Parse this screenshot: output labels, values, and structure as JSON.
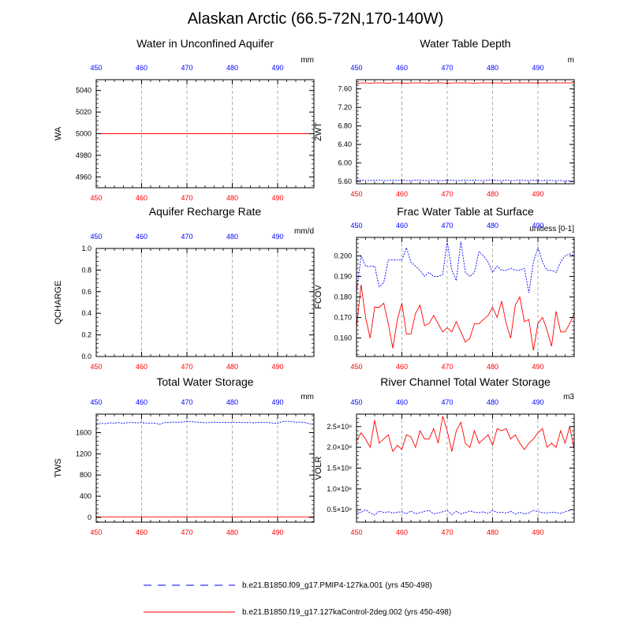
{
  "title": "Alaskan Arctic (66.5-72N,170-140W)",
  "legend": [
    {
      "name": "b.e21.B1850.f09_g17.PMIP4-127ka.001 (yrs 450-498)",
      "color": "#0000ff",
      "dash": "dashed"
    },
    {
      "name": "b.e21.B1850.f19_g17.127kaControl-2deg.002 (yrs 450-498)",
      "color": "#ff0000",
      "dash": "solid"
    }
  ],
  "colors": {
    "series_a": "#0000ff",
    "series_b": "#ff0000",
    "top_ticks": "#0000ff",
    "bottom_ticks": "#ff0000",
    "grid": "#999999"
  },
  "chart_data": [
    {
      "type": "line",
      "title": "Water in Unconfined Aquifer",
      "ylabel": "WA",
      "unit": "mm",
      "xlim": [
        450,
        498
      ],
      "ylim": [
        4950,
        5050
      ],
      "xticks": [
        450,
        460,
        470,
        480,
        490
      ],
      "yticks": [
        4960,
        4980,
        5000,
        5020,
        5040
      ],
      "ytick_labels": [
        "4960",
        "4980",
        "5000",
        "5020",
        "5040"
      ],
      "grid": "vertical dashed",
      "x_start": 450,
      "series": [
        {
          "values": [
            5000,
            5000,
            5000,
            5000,
            5000,
            5000,
            5000,
            5000,
            5000,
            5000,
            5000,
            5000,
            5000,
            5000,
            5000,
            5000,
            5000,
            5000,
            5000,
            5000,
            5000,
            5000,
            5000,
            5000,
            5000,
            5000,
            5000,
            5000,
            5000,
            5000,
            5000,
            5000,
            5000,
            5000,
            5000,
            5000,
            5000,
            5000,
            5000,
            5000,
            5000,
            5000,
            5000,
            5000,
            5000,
            5000,
            5000,
            5000,
            5000
          ],
          "color": "#0000ff",
          "dash": "dashed"
        },
        {
          "values": [
            5000,
            5000,
            5000,
            5000,
            5000,
            5000,
            5000,
            5000,
            5000,
            5000,
            5000,
            5000,
            5000,
            5000,
            5000,
            5000,
            5000,
            5000,
            5000,
            5000,
            5000,
            5000,
            5000,
            5000,
            5000,
            5000,
            5000,
            5000,
            5000,
            5000,
            5000,
            5000,
            5000,
            5000,
            5000,
            5000,
            5000,
            5000,
            5000,
            5000,
            5000,
            5000,
            5000,
            5000,
            5000,
            5000,
            5000,
            5000,
            5000
          ],
          "color": "#ff0000",
          "dash": "solid"
        }
      ]
    },
    {
      "type": "line",
      "title": "Water Table Depth",
      "ylabel": "ZWT",
      "unit": "m",
      "xlim": [
        450,
        498
      ],
      "ylim": [
        5.55,
        7.8
      ],
      "xticks": [
        450,
        460,
        470,
        480,
        490
      ],
      "yticks": [
        5.6,
        6.0,
        6.4,
        6.8,
        7.2,
        7.6
      ],
      "ytick_labels": [
        "5.60",
        "6.00",
        "6.40",
        "6.80",
        "7.20",
        "7.60"
      ],
      "grid": "vertical dashed",
      "x_start": 450,
      "series": [
        {
          "values": [
            5.62,
            5.63,
            5.62,
            5.62,
            5.63,
            5.63,
            5.62,
            5.62,
            5.63,
            5.62,
            5.63,
            5.62,
            5.62,
            5.63,
            5.63,
            5.62,
            5.62,
            5.63,
            5.62,
            5.62,
            5.63,
            5.63,
            5.62,
            5.62,
            5.63,
            5.62,
            5.63,
            5.62,
            5.62,
            5.63,
            5.63,
            5.62,
            5.62,
            5.63,
            5.62,
            5.62,
            5.63,
            5.62,
            5.62,
            5.63,
            5.62,
            5.62,
            5.63,
            5.62,
            5.62,
            5.62,
            5.61,
            5.61,
            5.61
          ],
          "color": "#0000ff",
          "dash": "dashed"
        },
        {
          "values": [
            7.72,
            7.73,
            7.73,
            7.72,
            7.73,
            7.73,
            7.73,
            7.72,
            7.73,
            7.73,
            7.73,
            7.72,
            7.73,
            7.73,
            7.73,
            7.73,
            7.72,
            7.73,
            7.73,
            7.73,
            7.72,
            7.73,
            7.73,
            7.73,
            7.73,
            7.73,
            7.72,
            7.73,
            7.73,
            7.73,
            7.73,
            7.73,
            7.73,
            7.72,
            7.73,
            7.73,
            7.73,
            7.73,
            7.73,
            7.73,
            7.73,
            7.73,
            7.73,
            7.73,
            7.73,
            7.73,
            7.73,
            7.73,
            7.73
          ],
          "color": "#ff0000",
          "dash": "solid"
        }
      ]
    },
    {
      "type": "line",
      "title": "Aquifer Recharge Rate",
      "ylabel": "QCHARGE",
      "unit": "mm/d",
      "xlim": [
        450,
        498
      ],
      "ylim": [
        0,
        1
      ],
      "xticks": [
        450,
        460,
        470,
        480,
        490
      ],
      "yticks": [
        0,
        0.2,
        0.4,
        0.6,
        0.8,
        1.0
      ],
      "ytick_labels": [
        "0.0",
        "0.2",
        "0.4",
        "0.6",
        "0.8",
        "1.0"
      ],
      "grid": "vertical dashed",
      "x_start": 450,
      "series": [
        {
          "values": [
            0,
            0,
            0,
            0,
            0,
            0,
            0,
            0,
            0,
            0,
            0,
            0,
            0,
            0,
            0,
            0,
            0,
            0,
            0,
            0,
            0,
            0,
            0,
            0,
            0,
            0,
            0,
            0,
            0,
            0,
            0,
            0,
            0,
            0,
            0,
            0,
            0,
            0,
            0,
            0,
            0,
            0,
            0,
            0,
            0,
            0,
            0,
            0,
            0
          ],
          "color": "#0000ff",
          "dash": "dashed"
        },
        {
          "values": [
            0,
            0,
            0,
            0,
            0,
            0,
            0,
            0,
            0,
            0,
            0,
            0,
            0,
            0,
            0,
            0,
            0,
            0,
            0,
            0,
            0,
            0,
            0,
            0,
            0,
            0,
            0,
            0,
            0,
            0,
            0,
            0,
            0,
            0,
            0,
            0,
            0,
            0,
            0,
            0,
            0,
            0,
            0,
            0,
            0,
            0,
            0,
            0,
            0
          ],
          "color": "#ff0000",
          "dash": "solid"
        }
      ]
    },
    {
      "type": "line",
      "title": "Frac Water Table at Surface",
      "ylabel": "FCOV",
      "unit": "unitless [0-1]",
      "xlim": [
        450,
        498
      ],
      "ylim": [
        0.151,
        0.209
      ],
      "xticks": [
        450,
        460,
        470,
        480,
        490
      ],
      "yticks": [
        0.16,
        0.17,
        0.18,
        0.19,
        0.2
      ],
      "ytick_labels": [
        "0.160",
        "0.170",
        "0.180",
        "0.190",
        "0.200"
      ],
      "grid": "vertical dashed",
      "x_start": 450,
      "series": [
        {
          "values": [
            0.182,
            0.2,
            0.195,
            0.195,
            0.195,
            0.185,
            0.187,
            0.198,
            0.198,
            0.198,
            0.198,
            0.204,
            0.197,
            0.195,
            0.193,
            0.19,
            0.192,
            0.19,
            0.19,
            0.191,
            0.207,
            0.193,
            0.188,
            0.207,
            0.192,
            0.19,
            0.192,
            0.202,
            0.2,
            0.197,
            0.192,
            0.195,
            0.193,
            0.193,
            0.194,
            0.193,
            0.193,
            0.194,
            0.182,
            0.197,
            0.204,
            0.197,
            0.193,
            0.193,
            0.192,
            0.197,
            0.2,
            0.201,
            0.2,
            0.202,
            0.201,
            0.205,
            0.204,
            0.197
          ],
          "color": "#0000ff",
          "dash": "dashed"
        },
        {
          "values": [
            0.165,
            0.186,
            0.17,
            0.16,
            0.175,
            0.175,
            0.177,
            0.167,
            0.155,
            0.169,
            0.177,
            0.162,
            0.162,
            0.172,
            0.176,
            0.166,
            0.167,
            0.171,
            0.167,
            0.163,
            0.165,
            0.163,
            0.168,
            0.163,
            0.158,
            0.16,
            0.167,
            0.167,
            0.169,
            0.171,
            0.175,
            0.17,
            0.178,
            0.167,
            0.16,
            0.176,
            0.18,
            0.168,
            0.169,
            0.154,
            0.167,
            0.17,
            0.164,
            0.156,
            0.173,
            0.163,
            0.163,
            0.167,
            0.172,
            0.156,
            0.173,
            0.167
          ],
          "color": "#ff0000",
          "dash": "solid"
        }
      ]
    },
    {
      "type": "line",
      "title": "Total Water Storage",
      "ylabel": "TWS",
      "unit": "mm",
      "xlim": [
        450,
        498
      ],
      "ylim": [
        -90,
        1950
      ],
      "xticks": [
        450,
        460,
        470,
        480,
        490
      ],
      "yticks": [
        0,
        400,
        800,
        1200,
        1600
      ],
      "ytick_labels": [
        "0",
        "400",
        "800",
        "1200",
        "1600"
      ],
      "grid": "vertical dashed",
      "x_start": 450,
      "series": [
        {
          "values": [
            1760,
            1775,
            1770,
            1785,
            1780,
            1790,
            1775,
            1790,
            1790,
            1785,
            1790,
            1780,
            1775,
            1780,
            1755,
            1790,
            1790,
            1800,
            1795,
            1800,
            1810,
            1805,
            1800,
            1795,
            1785,
            1790,
            1800,
            1790,
            1795,
            1790,
            1790,
            1795,
            1790,
            1790,
            1790,
            1785,
            1795,
            1790,
            1790,
            1780,
            1775,
            1810,
            1815,
            1810,
            1795,
            1800,
            1790,
            1765,
            1760,
            1790
          ],
          "color": "#0000ff",
          "dash": "dashed"
        },
        {
          "values": [
            10,
            10,
            10,
            10,
            10,
            10,
            10,
            10,
            10,
            10,
            10,
            10,
            10,
            10,
            10,
            10,
            10,
            10,
            10,
            10,
            10,
            10,
            10,
            10,
            10,
            10,
            10,
            10,
            10,
            10,
            10,
            10,
            10,
            10,
            10,
            10,
            10,
            10,
            10,
            10,
            10,
            10,
            10,
            10,
            10,
            10,
            10,
            10,
            10
          ],
          "color": "#ff0000",
          "dash": "solid"
        }
      ]
    },
    {
      "type": "line",
      "title": "River Channel Total Water Storage",
      "ylabel": "VOLR",
      "unit": "m3",
      "xlim": [
        450,
        498
      ],
      "ylim": [
        0.2,
        2.8
      ],
      "xticks": [
        450,
        460,
        470,
        480,
        490
      ],
      "yticks": [
        0.5,
        1.0,
        1.5,
        2.0,
        2.5
      ],
      "ytick_labels": [
        "0.5×10⁸",
        "1.0×10⁸",
        "1.5×10⁸",
        "2.0×10⁸",
        "2.5×10⁸"
      ],
      "grid": "vertical dashed",
      "x_start": 450,
      "series": [
        {
          "values": [
            0.45,
            0.43,
            0.5,
            0.42,
            0.37,
            0.47,
            0.43,
            0.45,
            0.42,
            0.44,
            0.45,
            0.4,
            0.47,
            0.4,
            0.43,
            0.46,
            0.48,
            0.4,
            0.42,
            0.45,
            0.48,
            0.38,
            0.46,
            0.4,
            0.43,
            0.47,
            0.44,
            0.43,
            0.45,
            0.41,
            0.48,
            0.43,
            0.44,
            0.42,
            0.46,
            0.4,
            0.44,
            0.4,
            0.42,
            0.48,
            0.45,
            0.43,
            0.42,
            0.44,
            0.43,
            0.41,
            0.45,
            0.48
          ],
          "color": "#0000ff",
          "dash": "dashed"
        },
        {
          "values": [
            2.15,
            2.35,
            2.2,
            2.0,
            2.65,
            2.1,
            2.2,
            2.3,
            1.9,
            2.05,
            1.95,
            2.3,
            2.25,
            2.0,
            2.4,
            2.2,
            2.2,
            2.45,
            2.1,
            2.75,
            2.4,
            1.9,
            2.4,
            2.6,
            2.1,
            2.0,
            2.4,
            2.1,
            2.2,
            2.3,
            2.05,
            2.45,
            2.4,
            2.45,
            2.2,
            2.3,
            2.1,
            1.95,
            2.1,
            2.2,
            2.35,
            2.45,
            2.0,
            2.1,
            2.0,
            2.4,
            2.1,
            2.5,
            1.95,
            2.2,
            2.15
          ],
          "color": "#ff0000",
          "dash": "solid"
        }
      ]
    }
  ]
}
